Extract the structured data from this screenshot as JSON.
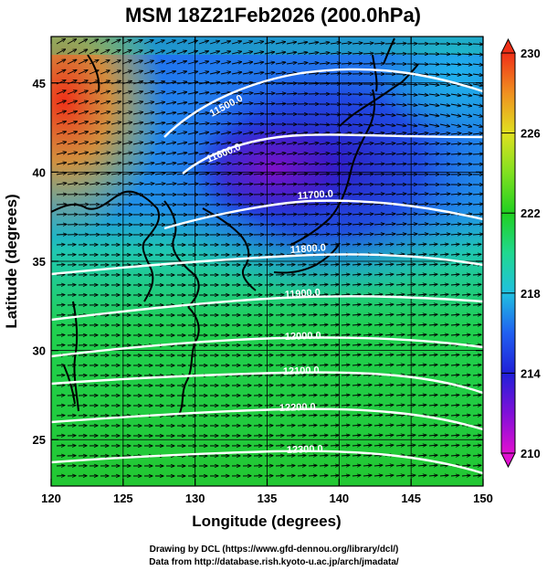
{
  "title": "MSM 18Z21Feb2026 (200.0hPa)",
  "map": {
    "xlabel": "Longitude (degrees)",
    "ylabel": "Latitude  (degrees)",
    "xticks": [
      120,
      125,
      130,
      135,
      140,
      145,
      150
    ],
    "yticks": [
      25,
      30,
      35,
      40,
      45
    ],
    "lon_range": [
      120,
      150
    ],
    "lat_range": [
      22.4,
      47.6
    ]
  },
  "colorbar": {
    "ticks": [
      210,
      214,
      218,
      222,
      226,
      230
    ],
    "min": 210,
    "max": 230,
    "colors": [
      "#e010d0",
      "#8010d8",
      "#2020d8",
      "#2060f0",
      "#20c0e0",
      "#20d890",
      "#20d020",
      "#80e020",
      "#e0e020",
      "#f09020",
      "#f03018"
    ]
  },
  "contours": [
    {
      "label": "11500.0",
      "value": 11500
    },
    {
      "label": "11600.0",
      "value": 11600
    },
    {
      "label": "11700.0",
      "value": 11700
    },
    {
      "label": "11800.0",
      "value": 11800
    },
    {
      "label": "11900.0",
      "value": 11900
    },
    {
      "label": "12000.0",
      "value": 12000
    },
    {
      "label": "12100.0",
      "value": 12100
    },
    {
      "label": "12200.0",
      "value": 12200
    },
    {
      "label": "12300.0",
      "value": 12300
    }
  ],
  "credits": {
    "line1": "Drawing by DCL (https://www.gfd-dennou.org/library/dcl/)",
    "line2": "Data from http://database.rish.kyoto-u.ac.jp/arch/jmadata/"
  }
}
